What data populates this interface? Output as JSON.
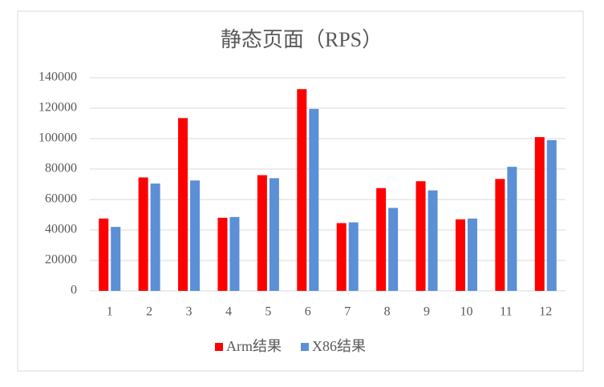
{
  "chart_data": {
    "type": "bar",
    "title": "静态页面（RPS）",
    "categories": [
      "1",
      "2",
      "3",
      "4",
      "5",
      "6",
      "7",
      "8",
      "9",
      "10",
      "11",
      "12"
    ],
    "series": [
      {
        "name": "Arm结果",
        "color": "#ff0000",
        "values": [
          47500,
          74500,
          113500,
          48000,
          76000,
          132500,
          44500,
          67500,
          72000,
          47000,
          73500,
          101000
        ]
      },
      {
        "name": "X86结果",
        "color": "#5b8fd6",
        "values": [
          42000,
          70500,
          72500,
          48500,
          74000,
          119500,
          45000,
          54500,
          66000,
          47500,
          81500,
          99000
        ]
      }
    ],
    "ylim": [
      0,
      140000
    ],
    "yticks": [
      0,
      20000,
      40000,
      60000,
      80000,
      100000,
      120000,
      140000
    ],
    "grid": true,
    "legend": "bottom"
  }
}
